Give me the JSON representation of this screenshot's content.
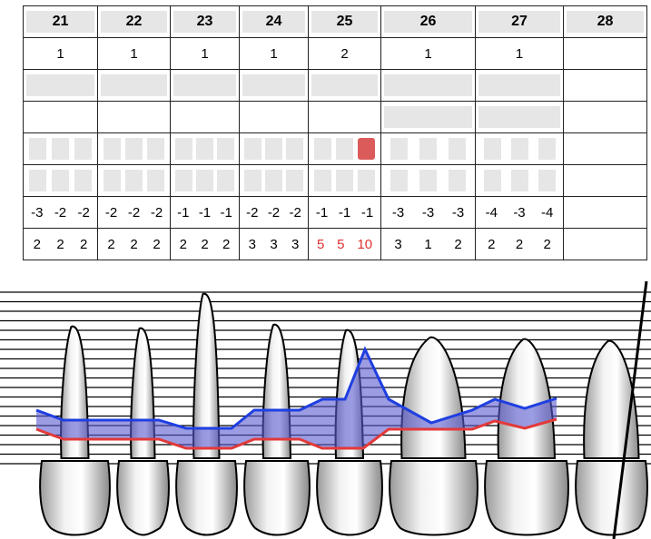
{
  "teeth": [
    {
      "id": "21",
      "implant": "1",
      "pocket": [
        "-3",
        "-2",
        "-2"
      ],
      "cal": [
        "2",
        "2",
        "2"
      ],
      "cal_red": [
        false,
        false,
        false
      ],
      "bleeding": [
        false,
        false,
        false
      ]
    },
    {
      "id": "22",
      "implant": "1",
      "pocket": [
        "-2",
        "-2",
        "-2"
      ],
      "cal": [
        "2",
        "2",
        "2"
      ],
      "cal_red": [
        false,
        false,
        false
      ],
      "bleeding": [
        false,
        false,
        false
      ]
    },
    {
      "id": "23",
      "implant": "1",
      "pocket": [
        "-1",
        "-1",
        "-1"
      ],
      "cal": [
        "2",
        "2",
        "2"
      ],
      "cal_red": [
        false,
        false,
        false
      ],
      "bleeding": [
        false,
        false,
        false
      ]
    },
    {
      "id": "24",
      "implant": "1",
      "pocket": [
        "-2",
        "-2",
        "-2"
      ],
      "cal": [
        "3",
        "3",
        "3"
      ],
      "cal_red": [
        false,
        false,
        false
      ],
      "bleeding": [
        false,
        false,
        false
      ]
    },
    {
      "id": "25",
      "implant": "2",
      "pocket": [
        "-1",
        "-1",
        "-1"
      ],
      "cal": [
        "5",
        "5",
        "10"
      ],
      "cal_red": [
        true,
        true,
        true
      ],
      "bleeding": [
        false,
        false,
        true
      ]
    },
    {
      "id": "26",
      "implant": "1",
      "pocket": [
        "-3",
        "-3",
        "-3"
      ],
      "cal": [
        "3",
        "1",
        "2"
      ],
      "cal_red": [
        false,
        false,
        false
      ],
      "bleeding": [
        false,
        false,
        false
      ]
    },
    {
      "id": "27",
      "implant": "1",
      "pocket": [
        "-4",
        "-3",
        "-4"
      ],
      "cal": [
        "2",
        "2",
        "2"
      ],
      "cal_red": [
        false,
        false,
        false
      ],
      "bleeding": [
        false,
        false,
        false
      ]
    },
    {
      "id": "28",
      "implant": "",
      "pocket": [
        "",
        "",
        ""
      ],
      "cal": [
        "",
        "",
        ""
      ],
      "cal_red": [
        false,
        false,
        false
      ],
      "bleeding": [
        false,
        false,
        false
      ],
      "missing": true
    }
  ],
  "colors": {
    "gingival_line": "#1f3fe0",
    "attachment_line": "#e23a3a",
    "fill": "#5a5ad0",
    "bleeding": "#db5b5b"
  }
}
